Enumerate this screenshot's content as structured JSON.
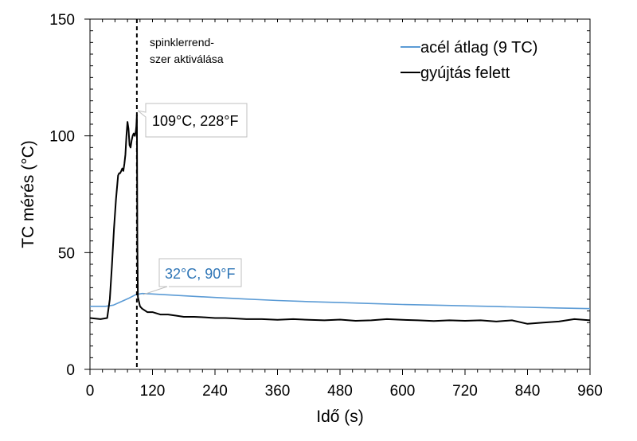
{
  "chart_data": {
    "type": "line",
    "title": "",
    "xlabel": "Idő (s)",
    "ylabel": "TC mérés (°C)",
    "xlim": [
      0,
      960
    ],
    "ylim": [
      0,
      150
    ],
    "xticks": [
      0,
      120,
      240,
      360,
      480,
      600,
      720,
      840,
      960
    ],
    "yticks": [
      0,
      50,
      100,
      150
    ],
    "grid": false,
    "legend_position": "top-right",
    "series": [
      {
        "name": "acél átlag (9 TC)",
        "color": "#5b9bd5",
        "x": [
          0,
          30,
          45,
          60,
          75,
          88,
          100,
          120,
          180,
          240,
          300,
          360,
          420,
          480,
          540,
          600,
          660,
          720,
          780,
          840,
          900,
          960
        ],
        "y": [
          27,
          27,
          27.5,
          29,
          30.5,
          32,
          32.5,
          32.3,
          31.5,
          30.8,
          30.1,
          29.5,
          29.0,
          28.6,
          28.2,
          27.8,
          27.5,
          27.2,
          26.9,
          26.6,
          26.3,
          26
        ]
      },
      {
        "name": "gyújtás felett",
        "color": "#000000",
        "x": [
          0,
          20,
          33,
          38,
          42,
          46,
          50,
          54,
          56,
          58,
          60,
          62,
          64,
          66,
          68,
          70,
          72,
          74,
          76,
          78,
          80,
          82,
          84,
          86,
          88,
          89,
          90,
          91,
          92,
          94,
          96,
          100,
          110,
          120,
          135,
          150,
          165,
          180,
          200,
          220,
          240,
          260,
          280,
          300,
          330,
          360,
          390,
          420,
          450,
          480,
          510,
          540,
          570,
          600,
          630,
          660,
          690,
          720,
          750,
          780,
          810,
          840,
          870,
          900,
          930,
          960
        ],
        "y": [
          22,
          21.5,
          22,
          30,
          44,
          60,
          73,
          83,
          84,
          84,
          85,
          86,
          85,
          88,
          92,
          100,
          106,
          103,
          96,
          95,
          98,
          100,
          101,
          100,
          102,
          104,
          109,
          55,
          31,
          29,
          27,
          26,
          24.5,
          24.5,
          23.5,
          23.5,
          23,
          22.5,
          22.5,
          22.3,
          22,
          22,
          21.8,
          21.5,
          21.5,
          21.2,
          21.5,
          21.2,
          21,
          21.3,
          20.8,
          21,
          21.5,
          21.2,
          21,
          20.7,
          21,
          20.8,
          21,
          20.5,
          21,
          19.5,
          20,
          20.5,
          21.5,
          21
        ]
      }
    ],
    "vertical_line": {
      "x": 90,
      "style": "dashed",
      "color": "#000000"
    },
    "annotations": {
      "sprinkler_note": [
        "spinklerrend-",
        "szer aktiválása"
      ],
      "peak_callout": {
        "text": "109°C, 228°F",
        "color": "#000000",
        "x": 90,
        "y": 109
      },
      "steel_callout": {
        "text": "32°C, 90°F",
        "color": "#2e75b6",
        "x": 90,
        "y": 32
      }
    }
  }
}
